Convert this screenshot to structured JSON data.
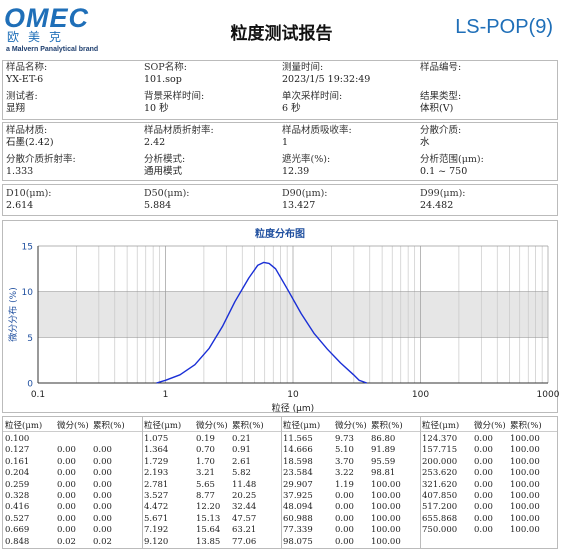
{
  "header": {
    "logo_text": "OMEC",
    "logo_cn": "欧美克",
    "logo_brand": "a Malvern Panalytical brand",
    "title": "粒度测试报告",
    "model": "LS-POP(9)"
  },
  "info": {
    "row1": [
      {
        "label": "样品名称:",
        "value": "YX-ET-6"
      },
      {
        "label": "SOP名称:",
        "value": "101.sop"
      },
      {
        "label": "测量时间:",
        "value": "2023/1/5 19:32:49"
      },
      {
        "label": "样品编号:",
        "value": ""
      }
    ],
    "row2": [
      {
        "label": "测试者:",
        "value": "显翔"
      },
      {
        "label": "背景采样时间:",
        "value": "10 秒"
      },
      {
        "label": "单次采样时间:",
        "value": "6 秒"
      },
      {
        "label": "结果类型:",
        "value": "体积(V)"
      }
    ],
    "row3": [
      {
        "label": "样品材质:",
        "value": "石墨(2.42)"
      },
      {
        "label": "样品材质折射率:",
        "value": "2.42"
      },
      {
        "label": "样品材质吸收率:",
        "value": "1"
      },
      {
        "label": "分散介质:",
        "value": "水"
      }
    ],
    "row4": [
      {
        "label": "分散介质折射率:",
        "value": "1.333"
      },
      {
        "label": "分析模式:",
        "value": "通用模式"
      },
      {
        "label": "遮光率(%):",
        "value": "12.39"
      },
      {
        "label": "分析范围(μm):",
        "value": "0.1 ~ 750"
      }
    ],
    "row5": [
      {
        "label": "D10(μm):",
        "value": "2.614"
      },
      {
        "label": "D50(μm):",
        "value": "5.884"
      },
      {
        "label": "D90(μm):",
        "value": "13.427"
      },
      {
        "label": "D99(μm):",
        "value": "24.482"
      }
    ]
  },
  "chart_data": {
    "type": "line",
    "title": "粒度分布图",
    "xlabel": "粒径 (μm)",
    "ylabel": "微分分布 (%)",
    "xscale": "log",
    "xlim": [
      0.1,
      1000
    ],
    "ylim": [
      0,
      15
    ],
    "x_ticks": [
      "0.1",
      "1",
      "10",
      "100",
      "1000"
    ],
    "y_ticks": [
      "0",
      "5",
      "10",
      "15"
    ],
    "shaded_band": [
      5,
      10
    ],
    "grid": true,
    "color": "#1a2fd6",
    "x": [
      0.848,
      1.075,
      1.364,
      1.729,
      2.193,
      2.781,
      3.527,
      4.472,
      5.671,
      7.192,
      9.12,
      11.565,
      14.666,
      18.598,
      23.584,
      29.907,
      37.925
    ],
    "y": [
      0.02,
      0.19,
      0.7,
      1.7,
      3.21,
      5.65,
      8.77,
      12.2,
      15.13,
      15.64,
      13.85,
      9.73,
      5.1,
      3.7,
      3.22,
      1.19,
      0.0
    ],
    "plot_x": [
      0.85,
      1.0,
      1.3,
      1.7,
      2.2,
      2.8,
      3.5,
      4.5,
      5.3,
      5.9,
      6.5,
      7.3,
      9.1,
      11.6,
      14.7,
      18.6,
      23.6,
      29.9,
      33.0,
      37.9
    ],
    "plot_y": [
      0.0,
      0.3,
      0.9,
      2.0,
      3.8,
      6.2,
      8.9,
      11.5,
      12.9,
      13.2,
      13.1,
      12.5,
      10.2,
      7.6,
      5.4,
      3.7,
      2.2,
      0.9,
      0.3,
      0.0
    ]
  },
  "table": {
    "headers": [
      "粒径(μm)",
      "微分(%)",
      "累积(%)"
    ],
    "columns": [
      [
        [
          "0.100",
          "",
          ""
        ],
        [
          "0.127",
          "0.00",
          "0.00"
        ],
        [
          "0.161",
          "0.00",
          "0.00"
        ],
        [
          "0.204",
          "0.00",
          "0.00"
        ],
        [
          "0.259",
          "0.00",
          "0.00"
        ],
        [
          "0.328",
          "0.00",
          "0.00"
        ],
        [
          "0.416",
          "0.00",
          "0.00"
        ],
        [
          "0.527",
          "0.00",
          "0.00"
        ],
        [
          "0.669",
          "0.00",
          "0.00"
        ],
        [
          "0.848",
          "0.02",
          "0.02"
        ]
      ],
      [
        [
          "1.075",
          "0.19",
          "0.21"
        ],
        [
          "1.364",
          "0.70",
          "0.91"
        ],
        [
          "1.729",
          "1.70",
          "2.61"
        ],
        [
          "2.193",
          "3.21",
          "5.82"
        ],
        [
          "2.781",
          "5.65",
          "11.48"
        ],
        [
          "3.527",
          "8.77",
          "20.25"
        ],
        [
          "4.472",
          "12.20",
          "32.44"
        ],
        [
          "5.671",
          "15.13",
          "47.57"
        ],
        [
          "7.192",
          "15.64",
          "63.21"
        ],
        [
          "9.120",
          "13.85",
          "77.06"
        ]
      ],
      [
        [
          "11.565",
          "9.73",
          "86.80"
        ],
        [
          "14.666",
          "5.10",
          "91.89"
        ],
        [
          "18.598",
          "3.70",
          "95.59"
        ],
        [
          "23.584",
          "3.22",
          "98.81"
        ],
        [
          "29.907",
          "1.19",
          "100.00"
        ],
        [
          "37.925",
          "0.00",
          "100.00"
        ],
        [
          "48.094",
          "0.00",
          "100.00"
        ],
        [
          "60.988",
          "0.00",
          "100.00"
        ],
        [
          "77.339",
          "0.00",
          "100.00"
        ],
        [
          "98.075",
          "0.00",
          "100.00"
        ]
      ],
      [
        [
          "124.370",
          "0.00",
          "100.00"
        ],
        [
          "157.715",
          "0.00",
          "100.00"
        ],
        [
          "200.000",
          "0.00",
          "100.00"
        ],
        [
          "253.620",
          "0.00",
          "100.00"
        ],
        [
          "321.620",
          "0.00",
          "100.00"
        ],
        [
          "407.850",
          "0.00",
          "100.00"
        ],
        [
          "517.200",
          "0.00",
          "100.00"
        ],
        [
          "655.868",
          "0.00",
          "100.00"
        ],
        [
          "750.000",
          "0.00",
          "100.00"
        ]
      ]
    ]
  }
}
